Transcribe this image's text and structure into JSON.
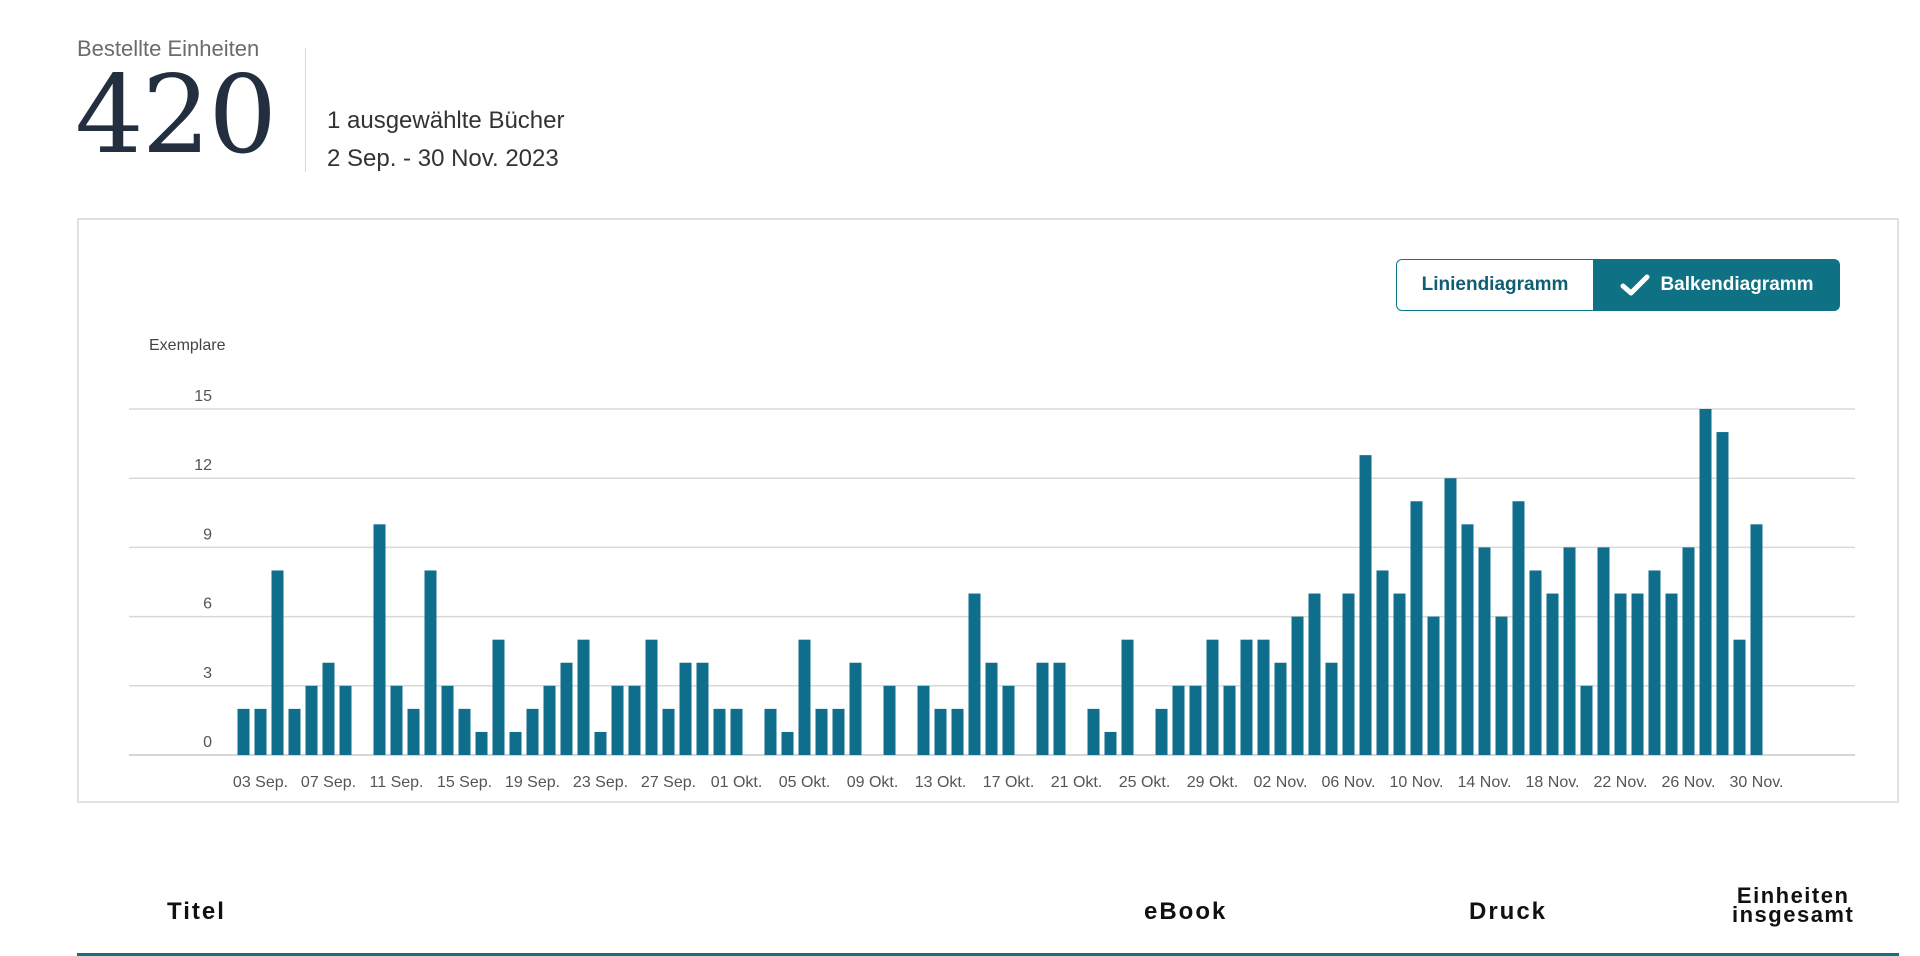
{
  "summary": {
    "label": "Bestellte Einheiten",
    "value": "420",
    "books_selected": "1 ausgewählte Bücher",
    "date_range": "2 Sep. - 30 Nov. 2023"
  },
  "chart_toggle": {
    "line_label": "Liniendiagramm",
    "bar_label": "Balkendiagramm",
    "selected": "Balkendiagramm",
    "selected_icon": "check-icon"
  },
  "chart_data": {
    "type": "bar",
    "ylabel": "Exemplare",
    "ylim": [
      0,
      15
    ],
    "y_ticks": [
      "0",
      "3",
      "6",
      "9",
      "12",
      "15"
    ],
    "grid": true,
    "color": "#0f6e8c",
    "x_tick_labels": [
      "03 Sep.",
      "07 Sep.",
      "11 Sep.",
      "15 Sep.",
      "19 Sep.",
      "23 Sep.",
      "27 Sep.",
      "01 Okt.",
      "05 Okt.",
      "09 Okt.",
      "13 Okt.",
      "17 Okt.",
      "21 Okt.",
      "25 Okt.",
      "29 Okt.",
      "02 Nov.",
      "06 Nov.",
      "10 Nov.",
      "14 Nov.",
      "18 Nov.",
      "22 Nov.",
      "26 Nov.",
      "30 Nov."
    ],
    "categories": [
      "2 Sep.",
      "3 Sep.",
      "4 Sep.",
      "5 Sep.",
      "6 Sep.",
      "7 Sep.",
      "8 Sep.",
      "9 Sep.",
      "10 Sep.",
      "11 Sep.",
      "12 Sep.",
      "13 Sep.",
      "14 Sep.",
      "15 Sep.",
      "16 Sep.",
      "17 Sep.",
      "18 Sep.",
      "19 Sep.",
      "20 Sep.",
      "21 Sep.",
      "22 Sep.",
      "23 Sep.",
      "24 Sep.",
      "25 Sep.",
      "26 Sep.",
      "27 Sep.",
      "28 Sep.",
      "29 Sep.",
      "30 Sep.",
      "1 Okt.",
      "2 Okt.",
      "3 Okt.",
      "4 Okt.",
      "5 Okt.",
      "6 Okt.",
      "7 Okt.",
      "8 Okt.",
      "9 Okt.",
      "10 Okt.",
      "11 Okt.",
      "12 Okt.",
      "13 Okt.",
      "14 Okt.",
      "15 Okt.",
      "16 Okt.",
      "17 Okt.",
      "18 Okt.",
      "19 Okt.",
      "20 Okt.",
      "21 Okt.",
      "22 Okt.",
      "23 Okt.",
      "24 Okt.",
      "25 Okt.",
      "26 Okt.",
      "27 Okt.",
      "28 Okt.",
      "29 Okt.",
      "30 Okt.",
      "31 Okt.",
      "1 Nov.",
      "2 Nov.",
      "3 Nov.",
      "4 Nov.",
      "5 Nov.",
      "6 Nov.",
      "7 Nov.",
      "8 Nov.",
      "9 Nov.",
      "10 Nov.",
      "11 Nov.",
      "12 Nov.",
      "13 Nov.",
      "14 Nov.",
      "15 Nov.",
      "16 Nov.",
      "17 Nov.",
      "18 Nov.",
      "19 Nov.",
      "20 Nov.",
      "21 Nov.",
      "22 Nov.",
      "23 Nov.",
      "24 Nov.",
      "25 Nov.",
      "26 Nov.",
      "27 Nov.",
      "28 Nov.",
      "29 Nov.",
      "30 Nov."
    ],
    "values": [
      2,
      2,
      8,
      2,
      3,
      4,
      3,
      0,
      10,
      3,
      2,
      8,
      3,
      2,
      1,
      5,
      1,
      2,
      3,
      4,
      5,
      1,
      3,
      3,
      5,
      2,
      4,
      4,
      2,
      2,
      0,
      2,
      1,
      5,
      2,
      2,
      4,
      0,
      3,
      0,
      3,
      2,
      2,
      7,
      4,
      3,
      0,
      4,
      4,
      0,
      2,
      1,
      5,
      0,
      2,
      3,
      3,
      5,
      3,
      5,
      5,
      4,
      6,
      7,
      4,
      7,
      13,
      8,
      7,
      11,
      6,
      12,
      10,
      9,
      6,
      11,
      8,
      7,
      9,
      3,
      9,
      7,
      7,
      8,
      7,
      9,
      15,
      14,
      5,
      10
    ]
  },
  "table": {
    "headers": {
      "title": "Titel",
      "ebook": "eBook",
      "print": "Druck",
      "total_line1": "Einheiten",
      "total_line2": "insgesamt"
    }
  }
}
